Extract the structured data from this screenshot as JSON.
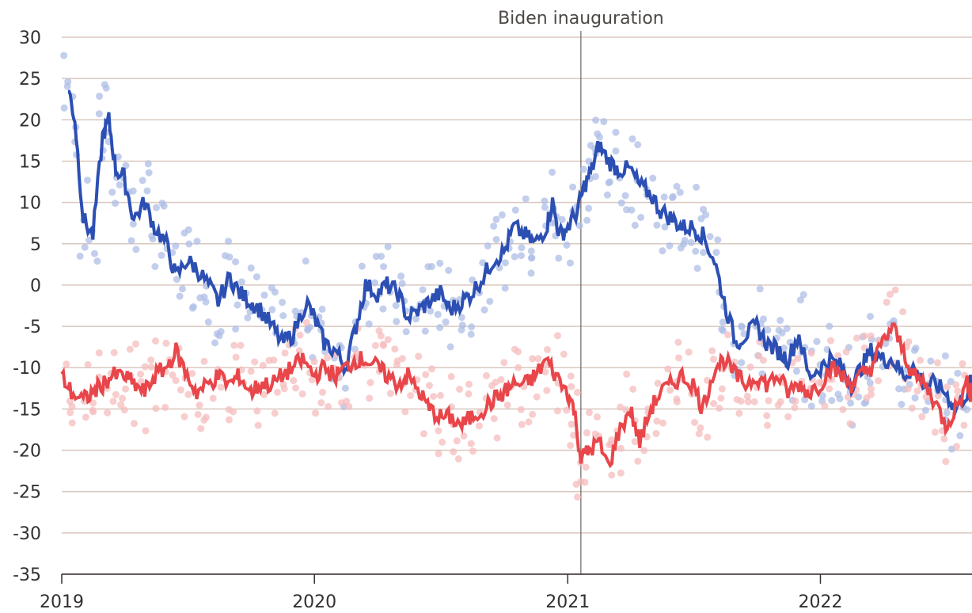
{
  "chart_data": {
    "type": "line",
    "title": "",
    "xlabel": "",
    "ylabel": "",
    "x_ticks": [
      "2019",
      "2020",
      "2021",
      "2022"
    ],
    "x_range": [
      "2019-01-01",
      "2022-08-08"
    ],
    "y_ticks": [
      "30",
      "25",
      "20",
      "15",
      "10",
      "5",
      "0",
      "-5",
      "-10",
      "-15",
      "-20",
      "-25",
      "-30",
      "-35"
    ],
    "ylim": [
      -35,
      30
    ],
    "grid": "horizontal",
    "legend": "none",
    "annotations": [
      {
        "label": "Biden inauguration",
        "x": "2021-01-20"
      }
    ],
    "series": [
      {
        "color": "#2c4fb3",
        "scatter_color": "#aebee6",
        "points": [
          [
            "2019-01-10",
            24
          ],
          [
            "2019-01-20",
            20
          ],
          [
            "2019-02-01",
            8
          ],
          [
            "2019-02-15",
            6
          ],
          [
            "2019-03-01",
            18
          ],
          [
            "2019-03-10",
            20
          ],
          [
            "2019-03-20",
            14
          ],
          [
            "2019-04-01",
            13
          ],
          [
            "2019-04-15",
            8
          ],
          [
            "2019-05-01",
            10
          ],
          [
            "2019-05-15",
            7
          ],
          [
            "2019-06-01",
            5
          ],
          [
            "2019-06-15",
            1
          ],
          [
            "2019-07-01",
            3
          ],
          [
            "2019-07-15",
            2
          ],
          [
            "2019-08-01",
            0
          ],
          [
            "2019-08-15",
            -2
          ],
          [
            "2019-09-01",
            1
          ],
          [
            "2019-09-15",
            -1
          ],
          [
            "2019-10-01",
            -2
          ],
          [
            "2019-10-15",
            -3
          ],
          [
            "2019-11-01",
            -5
          ],
          [
            "2019-11-15",
            -7
          ],
          [
            "2019-12-01",
            -6
          ],
          [
            "2019-12-20",
            -2
          ],
          [
            "2020-01-01",
            -4
          ],
          [
            "2020-01-15",
            -7
          ],
          [
            "2020-02-01",
            -8
          ],
          [
            "2020-02-15",
            -10
          ],
          [
            "2020-03-01",
            -5
          ],
          [
            "2020-03-15",
            0
          ],
          [
            "2020-04-01",
            -1
          ],
          [
            "2020-04-15",
            0
          ],
          [
            "2020-05-01",
            -1
          ],
          [
            "2020-05-15",
            -4
          ],
          [
            "2020-06-01",
            -3
          ],
          [
            "2020-06-15",
            -2
          ],
          [
            "2020-07-01",
            -1
          ],
          [
            "2020-07-15",
            -3
          ],
          [
            "2020-08-01",
            -2
          ],
          [
            "2020-08-15",
            -1
          ],
          [
            "2020-09-01",
            1
          ],
          [
            "2020-09-15",
            3
          ],
          [
            "2020-10-01",
            4
          ],
          [
            "2020-10-15",
            7
          ],
          [
            "2020-11-01",
            6
          ],
          [
            "2020-11-15",
            5
          ],
          [
            "2020-12-01",
            7
          ],
          [
            "2020-12-10",
            10
          ],
          [
            "2020-12-20",
            6
          ],
          [
            "2021-01-01",
            7
          ],
          [
            "2021-01-15",
            9
          ],
          [
            "2021-01-25",
            12
          ],
          [
            "2021-02-05",
            14
          ],
          [
            "2021-02-15",
            17
          ],
          [
            "2021-03-01",
            15
          ],
          [
            "2021-03-15",
            14
          ],
          [
            "2021-04-01",
            14
          ],
          [
            "2021-04-15",
            12
          ],
          [
            "2021-05-01",
            11
          ],
          [
            "2021-05-15",
            9
          ],
          [
            "2021-06-01",
            8
          ],
          [
            "2021-06-15",
            7
          ],
          [
            "2021-07-01",
            7
          ],
          [
            "2021-07-15",
            6
          ],
          [
            "2021-08-01",
            3
          ],
          [
            "2021-08-15",
            -2
          ],
          [
            "2021-09-01",
            -7
          ],
          [
            "2021-09-15",
            -6
          ],
          [
            "2021-10-01",
            -5
          ],
          [
            "2021-10-15",
            -7
          ],
          [
            "2021-11-01",
            -8
          ],
          [
            "2021-11-15",
            -9
          ],
          [
            "2021-12-01",
            -6
          ],
          [
            "2021-12-15",
            -11
          ],
          [
            "2022-01-01",
            -10
          ],
          [
            "2022-01-15",
            -9
          ],
          [
            "2022-02-01",
            -10
          ],
          [
            "2022-02-15",
            -12
          ],
          [
            "2022-03-01",
            -10
          ],
          [
            "2022-03-15",
            -8
          ],
          [
            "2022-04-01",
            -9
          ],
          [
            "2022-04-15",
            -9
          ],
          [
            "2022-05-01",
            -11
          ],
          [
            "2022-05-15",
            -10
          ],
          [
            "2022-06-01",
            -12
          ],
          [
            "2022-06-15",
            -12
          ],
          [
            "2022-07-01",
            -13
          ],
          [
            "2022-07-15",
            -15
          ],
          [
            "2022-08-01",
            -13
          ],
          [
            "2022-08-08",
            -12
          ]
        ]
      },
      {
        "color": "#e8464a",
        "scatter_color": "#f6bcbd",
        "points": [
          [
            "2019-01-01",
            -11
          ],
          [
            "2019-01-15",
            -13
          ],
          [
            "2019-02-01",
            -14
          ],
          [
            "2019-02-15",
            -13
          ],
          [
            "2019-03-01",
            -12
          ],
          [
            "2019-03-15",
            -11
          ],
          [
            "2019-04-01",
            -11
          ],
          [
            "2019-04-15",
            -12
          ],
          [
            "2019-05-01",
            -13
          ],
          [
            "2019-05-15",
            -11
          ],
          [
            "2019-06-01",
            -10
          ],
          [
            "2019-06-15",
            -8
          ],
          [
            "2019-07-01",
            -11
          ],
          [
            "2019-07-15",
            -13
          ],
          [
            "2019-08-01",
            -12
          ],
          [
            "2019-08-15",
            -11
          ],
          [
            "2019-09-01",
            -12
          ],
          [
            "2019-09-15",
            -11
          ],
          [
            "2019-10-01",
            -13
          ],
          [
            "2019-10-15",
            -12
          ],
          [
            "2019-11-01",
            -12
          ],
          [
            "2019-11-15",
            -11
          ],
          [
            "2019-12-01",
            -10
          ],
          [
            "2019-12-15",
            -9
          ],
          [
            "2020-01-01",
            -11
          ],
          [
            "2020-01-15",
            -10
          ],
          [
            "2020-02-01",
            -11
          ],
          [
            "2020-02-15",
            -10
          ],
          [
            "2020-03-01",
            -9
          ],
          [
            "2020-03-15",
            -9
          ],
          [
            "2020-04-01",
            -10
          ],
          [
            "2020-04-15",
            -11
          ],
          [
            "2020-05-01",
            -12
          ],
          [
            "2020-05-15",
            -11
          ],
          [
            "2020-06-01",
            -13
          ],
          [
            "2020-06-15",
            -15
          ],
          [
            "2020-07-01",
            -16
          ],
          [
            "2020-07-15",
            -16
          ],
          [
            "2020-08-01",
            -17
          ],
          [
            "2020-08-15",
            -16
          ],
          [
            "2020-09-01",
            -15
          ],
          [
            "2020-09-15",
            -14
          ],
          [
            "2020-10-01",
            -13
          ],
          [
            "2020-10-15",
            -12
          ],
          [
            "2020-11-01",
            -12
          ],
          [
            "2020-11-15",
            -11
          ],
          [
            "2020-12-01",
            -9
          ],
          [
            "2020-12-15",
            -11
          ],
          [
            "2021-01-01",
            -13
          ],
          [
            "2021-01-10",
            -15
          ],
          [
            "2021-01-20",
            -21
          ],
          [
            "2021-02-01",
            -20
          ],
          [
            "2021-02-15",
            -19
          ],
          [
            "2021-03-01",
            -22
          ],
          [
            "2021-03-15",
            -18
          ],
          [
            "2021-04-01",
            -15
          ],
          [
            "2021-04-15",
            -19
          ],
          [
            "2021-05-01",
            -15
          ],
          [
            "2021-05-15",
            -13
          ],
          [
            "2021-06-01",
            -12
          ],
          [
            "2021-06-15",
            -11
          ],
          [
            "2021-07-01",
            -12
          ],
          [
            "2021-07-15",
            -15
          ],
          [
            "2021-08-01",
            -10
          ],
          [
            "2021-08-15",
            -9
          ],
          [
            "2021-09-01",
            -11
          ],
          [
            "2021-09-15",
            -12
          ],
          [
            "2021-10-01",
            -11
          ],
          [
            "2021-10-15",
            -12
          ],
          [
            "2021-11-01",
            -11
          ],
          [
            "2021-11-15",
            -13
          ],
          [
            "2021-12-01",
            -12
          ],
          [
            "2021-12-15",
            -13
          ],
          [
            "2022-01-01",
            -12
          ],
          [
            "2022-01-15",
            -10
          ],
          [
            "2022-02-01",
            -11
          ],
          [
            "2022-02-15",
            -12
          ],
          [
            "2022-03-01",
            -11
          ],
          [
            "2022-03-15",
            -10
          ],
          [
            "2022-04-01",
            -7
          ],
          [
            "2022-04-15",
            -5
          ],
          [
            "2022-05-01",
            -8
          ],
          [
            "2022-05-15",
            -11
          ],
          [
            "2022-06-01",
            -12
          ],
          [
            "2022-06-15",
            -14
          ],
          [
            "2022-07-01",
            -17
          ],
          [
            "2022-07-15",
            -15
          ],
          [
            "2022-08-01",
            -12
          ],
          [
            "2022-08-08",
            -13
          ]
        ]
      }
    ]
  }
}
